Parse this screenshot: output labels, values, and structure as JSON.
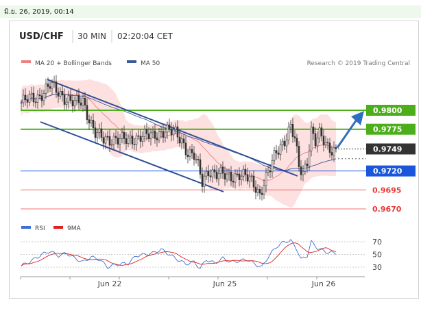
{
  "header": {
    "timestamp": "มิ.ย. 26, 2019, 00:14",
    "symbol": "USD/CHF",
    "timeframe": "30 MIN",
    "time": "02:20:04 CET"
  },
  "legend": {
    "ma20_label": "MA 20 + Bollinger Bands",
    "ma50_label": "MA 50",
    "credit": "Research © 2019 Trading Central"
  },
  "rsi_legend": {
    "rsi_label": "RSI",
    "ma_label": "9MA"
  },
  "colors": {
    "candle": "#333333",
    "ma20": "#f08080",
    "bollinger_fill": "#fde0e0",
    "ma50": "#3b5a9a",
    "channel": "#2f4f96",
    "green_level": "#4caf1a",
    "blue_level": "#1a56db",
    "red_level": "#e53935",
    "arrow": "#2f6fc0",
    "rsi_line": "#3f6fd0",
    "rsi_ma": "#e02020"
  },
  "chart_data": {
    "type": "candlestick",
    "title": "USD/CHF",
    "timeframe": "30 MIN",
    "x_tick_labels": [
      "Jun 22",
      "Jun 25",
      "Jun 26"
    ],
    "ylim": [
      0.966,
      0.983
    ],
    "levels": [
      {
        "value": 0.98,
        "label": "0.9800",
        "style": "green-box",
        "role": "resistance"
      },
      {
        "value": 0.9775,
        "label": "0.9775",
        "style": "green-box",
        "role": "resistance"
      },
      {
        "value": 0.9749,
        "label": "0.9749",
        "style": "dark-box",
        "role": "last-price"
      },
      {
        "value": 0.972,
        "label": "0.9720",
        "style": "blue-box",
        "role": "pivot"
      },
      {
        "value": 0.9695,
        "label": "0.9695",
        "style": "red-text",
        "role": "support"
      },
      {
        "value": 0.967,
        "label": "0.9670",
        "style": "red-text",
        "role": "support"
      }
    ],
    "price_path": [
      [
        0,
        0.981
      ],
      [
        8,
        0.9818
      ],
      [
        14,
        0.9832
      ],
      [
        20,
        0.982
      ],
      [
        26,
        0.9808
      ],
      [
        30,
        0.9812
      ],
      [
        33,
        0.979
      ],
      [
        36,
        0.977
      ],
      [
        40,
        0.976
      ],
      [
        46,
        0.9764
      ],
      [
        52,
        0.9758
      ],
      [
        58,
        0.9768
      ],
      [
        64,
        0.9764
      ],
      [
        70,
        0.9776
      ],
      [
        75,
        0.9768
      ],
      [
        78,
        0.976
      ],
      [
        81,
        0.9746
      ],
      [
        84,
        0.974
      ],
      [
        86,
        0.9724
      ],
      [
        88,
        0.9704
      ],
      [
        91,
        0.9722
      ],
      [
        95,
        0.9716
      ],
      [
        100,
        0.9712
      ],
      [
        106,
        0.9716
      ],
      [
        111,
        0.9708
      ],
      [
        114,
        0.97
      ],
      [
        116,
        0.969
      ],
      [
        118,
        0.9705
      ],
      [
        121,
        0.9722
      ],
      [
        124,
        0.9745
      ],
      [
        128,
        0.9762
      ],
      [
        131,
        0.9778
      ],
      [
        133,
        0.976
      ],
      [
        135,
        0.9724
      ],
      [
        137,
        0.9718
      ],
      [
        139,
        0.9735
      ],
      [
        141,
        0.9775
      ],
      [
        143,
        0.9758
      ],
      [
        145,
        0.9766
      ],
      [
        149,
        0.9752
      ],
      [
        153,
        0.9749
      ]
    ],
    "rsi": {
      "ylim": [
        20,
        80
      ],
      "levels": [
        70,
        50,
        30
      ],
      "path": [
        [
          0,
          32
        ],
        [
          5,
          40
        ],
        [
          10,
          50
        ],
        [
          14,
          55
        ],
        [
          18,
          48
        ],
        [
          22,
          52
        ],
        [
          26,
          44
        ],
        [
          30,
          38
        ],
        [
          34,
          46
        ],
        [
          38,
          42
        ],
        [
          42,
          30
        ],
        [
          46,
          34
        ],
        [
          52,
          36
        ],
        [
          56,
          48
        ],
        [
          60,
          50
        ],
        [
          64,
          52
        ],
        [
          68,
          58
        ],
        [
          72,
          50
        ],
        [
          76,
          42
        ],
        [
          80,
          35
        ],
        [
          84,
          38
        ],
        [
          87,
          28
        ],
        [
          90,
          42
        ],
        [
          94,
          36
        ],
        [
          98,
          44
        ],
        [
          102,
          38
        ],
        [
          106,
          40
        ],
        [
          110,
          42
        ],
        [
          114,
          34
        ],
        [
          117,
          30
        ],
        [
          120,
          46
        ],
        [
          124,
          62
        ],
        [
          128,
          70
        ],
        [
          131,
          72
        ],
        [
          134,
          58
        ],
        [
          136,
          42
        ],
        [
          139,
          48
        ],
        [
          141,
          70
        ],
        [
          144,
          60
        ],
        [
          148,
          54
        ],
        [
          153,
          52
        ]
      ]
    },
    "legend_position": "top-left",
    "grid": false
  }
}
